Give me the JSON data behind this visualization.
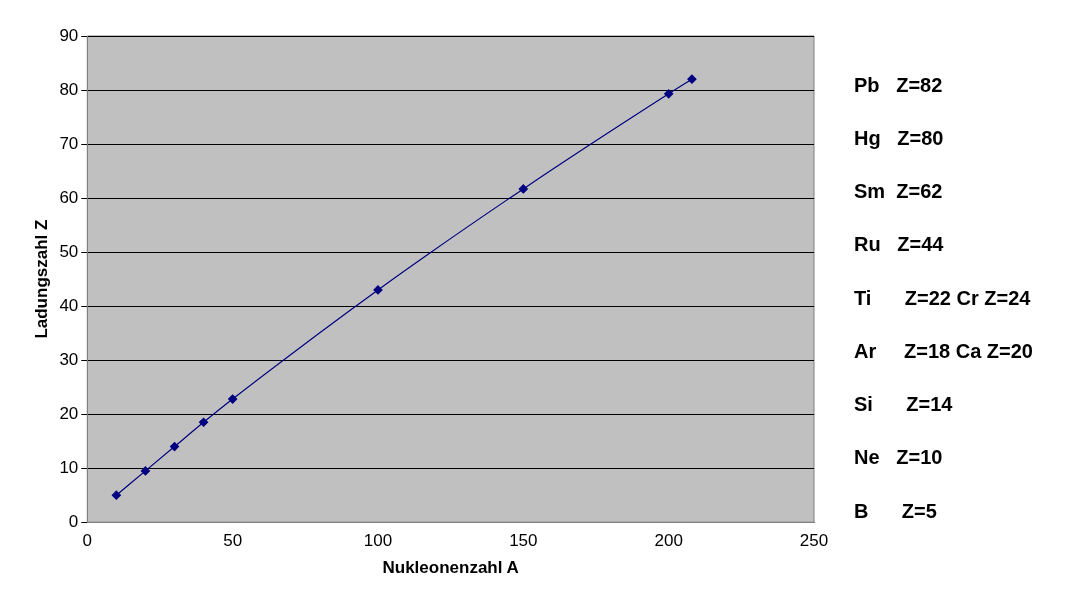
{
  "chart_data": {
    "type": "line",
    "xlabel": "Nukleonenzahl A",
    "ylabel": "Ladungszahl Z",
    "x": [
      10,
      20,
      30,
      40,
      50,
      100,
      150,
      200,
      208
    ],
    "series": [
      {
        "color": "#000080",
        "values": [
          5,
          9.5,
          14,
          18.5,
          22.8,
          43,
          61.7,
          79.3,
          82
        ]
      }
    ],
    "xlim": [
      0,
      250
    ],
    "xticks": [
      0,
      50,
      100,
      150,
      200,
      250
    ],
    "ylim": [
      0,
      90
    ],
    "yticks": [
      0,
      10,
      20,
      30,
      40,
      50,
      60,
      70,
      80,
      90
    ],
    "grid": "y",
    "marker": "diamond",
    "line_style": "solid",
    "legend": false,
    "annotations": [
      "Pb   Z=82",
      "Hg   Z=80",
      "Sm  Z=62",
      "Ru   Z=44",
      "Ti      Z=22 Cr Z=24",
      "Ar     Z=18 Ca Z=20",
      "Si      Z=14",
      "Ne   Z=10",
      "B      Z=5"
    ]
  }
}
